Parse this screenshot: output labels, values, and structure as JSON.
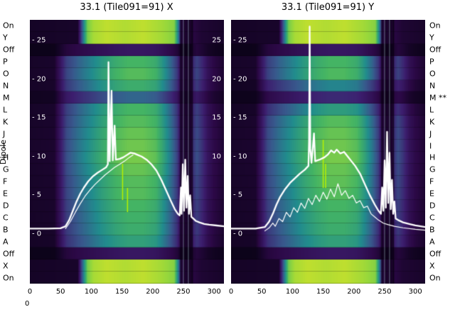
{
  "figure": {
    "left_title": "33.1 (Tile091=91) X",
    "right_title": "33.1 (Tile091=91) Y",
    "y_axis_label": "Dipole",
    "stray_label": "0"
  },
  "chart_data": {
    "type": "heatmap",
    "description": "Per-dipole power spectra waterfall for tile 091, X and Y polarisations, with overlaid white spectrum curves",
    "x_ticks": [
      0,
      50,
      100,
      150,
      200,
      250,
      300
    ],
    "x_range": [
      0,
      316
    ],
    "power_tick_labels": [
      25,
      20,
      15,
      10,
      5,
      0
    ],
    "left_panel_right_edge_labels": [
      25,
      20,
      15,
      10
    ],
    "dipole_rows": [
      "On",
      "Y",
      "Off",
      "P",
      "O",
      "N",
      "M",
      "L",
      "K",
      "J",
      "I",
      "H",
      "G",
      "F",
      "E",
      "D",
      "C",
      "B",
      "A",
      "Off",
      "X",
      "On"
    ],
    "right_edge_rows": [
      "On",
      "Y",
      "Off",
      "P",
      "O",
      "N",
      "M **",
      "L",
      "K",
      "J",
      "I",
      "H",
      "G",
      "F",
      "E",
      "D",
      "C",
      "B",
      "A",
      "Off",
      "X",
      "On"
    ],
    "row_types": [
      "bright",
      "bright",
      "off",
      "normal",
      "normal",
      "normal",
      "normal",
      "normal",
      "normal",
      "normal",
      "normal",
      "normal",
      "normal",
      "normal",
      "normal",
      "normal",
      "normal",
      "normal",
      "normal",
      "off",
      "bright",
      "bright"
    ],
    "flagged_dipole": "M",
    "flagged_marker": "**",
    "curve_color": "#ffffff",
    "colormap_stops": [
      [
        0,
        "#080214"
      ],
      [
        0.1,
        "#2b0845"
      ],
      [
        0.22,
        "#3c1e6e"
      ],
      [
        0.38,
        "#38588c"
      ],
      [
        0.52,
        "#218c8d"
      ],
      [
        0.68,
        "#44b464"
      ],
      [
        0.84,
        "#96d73c"
      ],
      [
        1,
        "#e8e621"
      ]
    ],
    "column_profile": [
      [
        0,
        0.05
      ],
      [
        40,
        0.06
      ],
      [
        48,
        0.18
      ],
      [
        60,
        0.38
      ],
      [
        80,
        0.5
      ],
      [
        100,
        0.6
      ],
      [
        120,
        0.7
      ],
      [
        140,
        0.78
      ],
      [
        160,
        0.83
      ],
      [
        185,
        0.83
      ],
      [
        205,
        0.78
      ],
      [
        215,
        0.68
      ],
      [
        230,
        0.5
      ],
      [
        240,
        0.34
      ],
      [
        244,
        0.2
      ],
      [
        248,
        0.12
      ],
      [
        256,
        0.12
      ],
      [
        262,
        0.1
      ],
      [
        266,
        0.3
      ],
      [
        272,
        0.38
      ],
      [
        280,
        0.3
      ],
      [
        290,
        0.18
      ],
      [
        300,
        0.12
      ],
      [
        316,
        0.07
      ]
    ],
    "bright_profile": [
      [
        0,
        0.04
      ],
      [
        78,
        0.05
      ],
      [
        86,
        0.45
      ],
      [
        94,
        0.85
      ],
      [
        104,
        0.95
      ],
      [
        125,
        1.0
      ],
      [
        155,
        0.97
      ],
      [
        185,
        1.0
      ],
      [
        215,
        0.94
      ],
      [
        235,
        0.88
      ],
      [
        242,
        0.5
      ],
      [
        247,
        0.12
      ],
      [
        258,
        0.1
      ],
      [
        264,
        0.08
      ],
      [
        268,
        0.1
      ],
      [
        280,
        0.07
      ],
      [
        316,
        0.05
      ]
    ],
    "cluster_zone": {
      "x_from": 244,
      "x_to": 266,
      "dark_stripes": [
        [
          245,
          247
        ],
        [
          251,
          253
        ],
        [
          255,
          256.5
        ],
        [
          259,
          261
        ],
        [
          263,
          265
        ]
      ],
      "bright_lines": [
        250,
        258
      ]
    },
    "panels": [
      {
        "title": "33.1 (Tile091=91) X",
        "pol": "X",
        "row_factors": [
          0.92,
          0.92,
          0.22,
          0.82,
          0.86,
          0.78,
          0.5,
          0.82,
          0.86,
          0.9,
          0.92,
          0.94,
          0.9,
          0.86,
          0.86,
          0.82,
          0.8,
          0.78,
          0.72,
          0.22,
          0.92,
          0.92
        ],
        "main_curve": [
          [
            0,
            0.7
          ],
          [
            30,
            0.7
          ],
          [
            50,
            0.75
          ],
          [
            58,
            1.0
          ],
          [
            64,
            1.8
          ],
          [
            70,
            3.0
          ],
          [
            76,
            4.2
          ],
          [
            82,
            5.2
          ],
          [
            88,
            6.0
          ],
          [
            95,
            6.8
          ],
          [
            102,
            7.4
          ],
          [
            110,
            7.9
          ],
          [
            118,
            8.3
          ],
          [
            124,
            8.6
          ],
          [
            127,
            9.0
          ],
          [
            128,
            22.2
          ],
          [
            130,
            9.4
          ],
          [
            133,
            18.5
          ],
          [
            135,
            9.5
          ],
          [
            138,
            14.0
          ],
          [
            140,
            9.6
          ],
          [
            146,
            9.7
          ],
          [
            152,
            9.9
          ],
          [
            158,
            10.2
          ],
          [
            164,
            10.5
          ],
          [
            170,
            10.4
          ],
          [
            176,
            10.2
          ],
          [
            182,
            10.0
          ],
          [
            190,
            9.6
          ],
          [
            198,
            9.0
          ],
          [
            206,
            8.2
          ],
          [
            214,
            7.0
          ],
          [
            222,
            5.6
          ],
          [
            230,
            4.2
          ],
          [
            236,
            3.2
          ],
          [
            241,
            2.6
          ],
          [
            244,
            2.4
          ],
          [
            246,
            6.0
          ],
          [
            247,
            2.6
          ],
          [
            249,
            9.0
          ],
          [
            251,
            3.0
          ],
          [
            253,
            9.6
          ],
          [
            255,
            3.4
          ],
          [
            257,
            7.5
          ],
          [
            259,
            2.6
          ],
          [
            261,
            5.0
          ],
          [
            263,
            2.2
          ],
          [
            266,
            2.0
          ],
          [
            270,
            1.7
          ],
          [
            276,
            1.5
          ],
          [
            284,
            1.3
          ],
          [
            292,
            1.2
          ],
          [
            304,
            1.1
          ],
          [
            316,
            1.0
          ]
        ],
        "secondary_curve": [
          [
            58,
            0.7
          ],
          [
            66,
            1.6
          ],
          [
            74,
            2.8
          ],
          [
            82,
            3.9
          ],
          [
            90,
            4.9
          ],
          [
            98,
            5.7
          ],
          [
            106,
            6.4
          ],
          [
            114,
            7.0
          ],
          [
            122,
            7.6
          ],
          [
            130,
            8.1
          ],
          [
            138,
            8.6
          ],
          [
            146,
            9.0
          ],
          [
            154,
            9.4
          ],
          [
            162,
            9.9
          ],
          [
            168,
            10.2
          ]
        ],
        "artifact_lines": [
          {
            "x": 151,
            "row_from": 12,
            "row_to": 14
          },
          {
            "x": 159,
            "row_from": 14,
            "row_to": 15
          }
        ]
      },
      {
        "title": "33.1 (Tile091=91) Y",
        "pol": "Y",
        "row_factors": [
          0.92,
          0.92,
          0.22,
          0.82,
          0.84,
          0.6,
          0.3,
          0.7,
          0.86,
          0.9,
          0.92,
          0.94,
          0.9,
          0.88,
          0.86,
          0.82,
          0.8,
          0.78,
          0.72,
          0.22,
          0.92,
          0.92
        ],
        "main_curve": [
          [
            0,
            0.7
          ],
          [
            40,
            0.7
          ],
          [
            55,
            0.9
          ],
          [
            62,
            1.6
          ],
          [
            68,
            2.6
          ],
          [
            74,
            3.8
          ],
          [
            80,
            4.8
          ],
          [
            88,
            5.8
          ],
          [
            96,
            6.6
          ],
          [
            104,
            7.2
          ],
          [
            112,
            7.8
          ],
          [
            120,
            8.3
          ],
          [
            126,
            8.8
          ],
          [
            127,
            12.0
          ],
          [
            128,
            26.8
          ],
          [
            129,
            11.0
          ],
          [
            131,
            9.2
          ],
          [
            135,
            13.0
          ],
          [
            137,
            9.4
          ],
          [
            144,
            9.6
          ],
          [
            152,
            9.9
          ],
          [
            158,
            10.3
          ],
          [
            163,
            10.8
          ],
          [
            168,
            10.5
          ],
          [
            172,
            10.9
          ],
          [
            178,
            10.4
          ],
          [
            184,
            10.6
          ],
          [
            190,
            10.0
          ],
          [
            196,
            9.4
          ],
          [
            202,
            8.8
          ],
          [
            210,
            7.8
          ],
          [
            218,
            6.4
          ],
          [
            226,
            5.0
          ],
          [
            234,
            3.8
          ],
          [
            240,
            3.0
          ],
          [
            244,
            2.6
          ],
          [
            246,
            6.0
          ],
          [
            248,
            3.0
          ],
          [
            250,
            9.5
          ],
          [
            252,
            3.4
          ],
          [
            254,
            13.2
          ],
          [
            256,
            4.0
          ],
          [
            258,
            10.5
          ],
          [
            260,
            3.2
          ],
          [
            262,
            7.0
          ],
          [
            264,
            2.6
          ],
          [
            266,
            4.2
          ],
          [
            268,
            2.0
          ],
          [
            272,
            1.8
          ],
          [
            280,
            1.5
          ],
          [
            290,
            1.3
          ],
          [
            300,
            1.1
          ],
          [
            316,
            0.9
          ]
        ],
        "secondary_curve": [
          [
            55,
            0.4
          ],
          [
            62,
            0.8
          ],
          [
            68,
            1.4
          ],
          [
            72,
            1.0
          ],
          [
            78,
            2.0
          ],
          [
            84,
            1.6
          ],
          [
            90,
            2.8
          ],
          [
            96,
            2.2
          ],
          [
            102,
            3.4
          ],
          [
            108,
            2.8
          ],
          [
            114,
            4.0
          ],
          [
            120,
            3.3
          ],
          [
            126,
            4.6
          ],
          [
            132,
            3.8
          ],
          [
            138,
            5.0
          ],
          [
            144,
            4.2
          ],
          [
            150,
            5.4
          ],
          [
            156,
            4.5
          ],
          [
            162,
            5.8
          ],
          [
            168,
            4.8
          ],
          [
            174,
            6.5
          ],
          [
            180,
            5.0
          ],
          [
            186,
            5.6
          ],
          [
            192,
            4.6
          ],
          [
            198,
            5.0
          ],
          [
            204,
            4.0
          ],
          [
            210,
            4.3
          ],
          [
            216,
            3.4
          ],
          [
            222,
            3.6
          ],
          [
            228,
            2.6
          ],
          [
            234,
            2.2
          ],
          [
            240,
            1.8
          ],
          [
            248,
            1.4
          ],
          [
            256,
            1.2
          ],
          [
            266,
            1.0
          ],
          [
            280,
            0.8
          ],
          [
            300,
            0.6
          ],
          [
            316,
            0.5
          ]
        ],
        "artifact_lines": [
          {
            "x": 150,
            "row_from": 10,
            "row_to": 13
          },
          {
            "x": 154,
            "row_from": 12,
            "row_to": 13
          }
        ]
      }
    ]
  }
}
